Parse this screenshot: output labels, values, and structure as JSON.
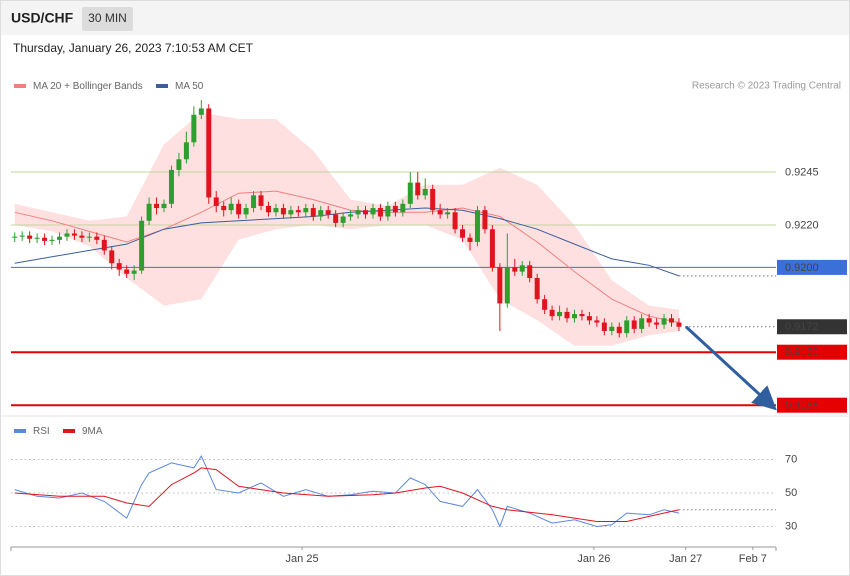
{
  "header": {
    "symbol": "USD/CHF",
    "interval": "30 MIN",
    "timestamp": "Thursday, January 26, 2023 7:10:53 AM CET",
    "credit": "Research © 2023 Trading Central"
  },
  "chart_data": [
    {
      "type": "candlestick",
      "xlim": [
        -0.5,
        102
      ],
      "ylim": [
        0.913,
        0.928
      ],
      "up_color": "#2e9e2e",
      "down_color": "#e0141e",
      "candles": {
        "x": [
          0,
          1,
          2,
          3,
          4,
          5,
          6,
          7,
          8,
          9,
          10,
          11,
          12,
          13,
          14,
          15,
          16,
          17,
          18,
          19,
          20,
          21,
          22,
          23,
          24,
          25,
          26,
          27,
          28,
          29,
          30,
          31,
          32,
          33,
          34,
          35,
          36,
          37,
          38,
          39,
          40,
          41,
          42,
          43,
          44,
          45,
          46,
          47,
          48,
          49,
          50,
          51,
          52,
          53,
          54,
          55,
          56,
          57,
          58,
          59,
          60,
          61,
          62,
          63,
          64,
          65,
          66,
          67,
          68,
          69,
          70,
          71,
          72,
          73,
          74,
          75,
          76,
          77,
          78,
          79,
          80,
          81,
          82,
          83,
          84,
          85,
          86,
          87,
          88,
          89
        ],
        "open": [
          0.9214,
          0.92145,
          0.9215,
          0.92135,
          0.9214,
          0.92125,
          0.9213,
          0.92145,
          0.9216,
          0.9215,
          0.9214,
          0.92145,
          0.9213,
          0.9208,
          0.9202,
          0.9199,
          0.9197,
          0.91985,
          0.9222,
          0.923,
          0.9228,
          0.923,
          0.9246,
          0.9251,
          0.9259,
          0.9272,
          0.9275,
          0.9233,
          0.9229,
          0.9227,
          0.923,
          0.9225,
          0.9228,
          0.9234,
          0.9229,
          0.9226,
          0.9228,
          0.9225,
          0.9227,
          0.9226,
          0.9228,
          0.9224,
          0.9227,
          0.9225,
          0.9221,
          0.9224,
          0.9225,
          0.9227,
          0.9225,
          0.9228,
          0.9224,
          0.9229,
          0.9226,
          0.923,
          0.924,
          0.9234,
          0.9237,
          0.9227,
          0.9225,
          0.9226,
          0.9218,
          0.9214,
          0.9212,
          0.9227,
          0.9218,
          0.92,
          0.9183,
          0.92,
          0.9198,
          0.9201,
          0.9195,
          0.9185,
          0.918,
          0.9177,
          0.9179,
          0.9176,
          0.9178,
          0.9177,
          0.9175,
          0.9174,
          0.917,
          0.9172,
          0.9169,
          0.9175,
          0.9171,
          0.9176,
          0.9174,
          0.9173,
          0.9176,
          0.9174
        ],
        "high": [
          0.92165,
          0.9217,
          0.9217,
          0.9216,
          0.9216,
          0.9215,
          0.92165,
          0.9218,
          0.9218,
          0.9217,
          0.92165,
          0.92165,
          0.9215,
          0.921,
          0.9204,
          0.9201,
          0.9201,
          0.9224,
          0.9233,
          0.9233,
          0.9232,
          0.9248,
          0.9254,
          0.9264,
          0.9276,
          0.9279,
          0.9277,
          0.9236,
          0.9231,
          0.9233,
          0.9232,
          0.923,
          0.9236,
          0.9236,
          0.9231,
          0.923,
          0.923,
          0.9229,
          0.9229,
          0.923,
          0.923,
          0.9229,
          0.9229,
          0.9227,
          0.9226,
          0.9227,
          0.9229,
          0.9229,
          0.923,
          0.923,
          0.9231,
          0.9231,
          0.9232,
          0.9245,
          0.9245,
          0.9242,
          0.9239,
          0.923,
          0.9228,
          0.9228,
          0.922,
          0.9216,
          0.9229,
          0.9229,
          0.922,
          0.9202,
          0.9216,
          0.9204,
          0.9203,
          0.9203,
          0.9197,
          0.9187,
          0.9182,
          0.9182,
          0.9181,
          0.918,
          0.918,
          0.9179,
          0.9177,
          0.9176,
          0.9174,
          0.9174,
          0.9177,
          0.9177,
          0.9178,
          0.9178,
          0.9176,
          0.9178,
          0.9178,
          0.9176
        ],
        "low": [
          0.9212,
          0.92125,
          0.92115,
          0.92115,
          0.92105,
          0.92105,
          0.9211,
          0.92125,
          0.9213,
          0.9212,
          0.9212,
          0.9211,
          0.9206,
          0.9199,
          0.9196,
          0.9195,
          0.9194,
          0.9197,
          0.922,
          0.9225,
          0.9226,
          0.9228,
          0.9243,
          0.9249,
          0.9257,
          0.927,
          0.923,
          0.9226,
          0.9224,
          0.9225,
          0.9223,
          0.9223,
          0.9226,
          0.9227,
          0.9224,
          0.9224,
          0.9223,
          0.9223,
          0.9224,
          0.9224,
          0.9222,
          0.9222,
          0.9223,
          0.9219,
          0.9219,
          0.9222,
          0.9223,
          0.9223,
          0.9223,
          0.9222,
          0.9222,
          0.9224,
          0.9224,
          0.9228,
          0.9232,
          0.9232,
          0.9225,
          0.9223,
          0.9223,
          0.9216,
          0.9212,
          0.9208,
          0.921,
          0.9216,
          0.9198,
          0.917,
          0.9181,
          0.9196,
          0.9196,
          0.9193,
          0.9183,
          0.9178,
          0.9175,
          0.9175,
          0.9174,
          0.9174,
          0.9175,
          0.9173,
          0.9172,
          0.9168,
          0.9168,
          0.9167,
          0.9167,
          0.9169,
          0.9169,
          0.9172,
          0.9171,
          0.9171,
          0.9172,
          0.917
        ],
        "close": [
          0.92145,
          0.9215,
          0.92135,
          0.9214,
          0.92125,
          0.9213,
          0.92145,
          0.9216,
          0.9215,
          0.9214,
          0.92145,
          0.9213,
          0.9208,
          0.9202,
          0.9199,
          0.9197,
          0.91985,
          0.9222,
          0.923,
          0.9228,
          0.923,
          0.9246,
          0.9251,
          0.9259,
          0.9272,
          0.9275,
          0.9233,
          0.9229,
          0.9227,
          0.923,
          0.9225,
          0.9228,
          0.9234,
          0.9229,
          0.9226,
          0.9228,
          0.9225,
          0.9227,
          0.9226,
          0.9228,
          0.9224,
          0.9227,
          0.9225,
          0.9221,
          0.9224,
          0.9225,
          0.9227,
          0.9225,
          0.9228,
          0.9224,
          0.9229,
          0.9226,
          0.923,
          0.924,
          0.9234,
          0.9237,
          0.9227,
          0.9225,
          0.9226,
          0.9218,
          0.9214,
          0.9212,
          0.9227,
          0.9218,
          0.92,
          0.9183,
          0.92,
          0.9198,
          0.9201,
          0.9195,
          0.9185,
          0.918,
          0.9177,
          0.9179,
          0.9176,
          0.9178,
          0.9177,
          0.9175,
          0.9174,
          0.917,
          0.9172,
          0.9169,
          0.9175,
          0.9171,
          0.9176,
          0.9174,
          0.9173,
          0.9176,
          0.9174,
          0.9172
        ]
      },
      "series": [
        {
          "name": "MA 20 + Bollinger Bands",
          "color": "#f08080",
          "band_color": "#fdd5d5",
          "x": [
            0,
            5,
            10,
            15,
            20,
            25,
            30,
            35,
            40,
            45,
            50,
            55,
            60,
            65,
            70,
            75,
            80,
            85,
            89
          ],
          "values": [
            0.9226,
            0.9222,
            0.9217,
            0.9212,
            0.9218,
            0.9226,
            0.9235,
            0.9236,
            0.9232,
            0.9227,
            0.9226,
            0.9226,
            0.9228,
            0.9224,
            0.9212,
            0.9198,
            0.9185,
            0.9177,
            0.9174
          ],
          "upper": [
            0.923,
            0.9226,
            0.9222,
            0.9224,
            0.9258,
            0.9273,
            0.927,
            0.927,
            0.9255,
            0.9232,
            0.9229,
            0.9239,
            0.9239,
            0.9247,
            0.9239,
            0.922,
            0.9194,
            0.9182,
            0.918
          ],
          "lower": [
            0.922,
            0.9217,
            0.921,
            0.9195,
            0.9182,
            0.9185,
            0.9213,
            0.9218,
            0.922,
            0.9218,
            0.922,
            0.922,
            0.9213,
            0.9185,
            0.9175,
            0.9163,
            0.9163,
            0.9168,
            0.917
          ]
        },
        {
          "name": "MA 50",
          "color": "#3a5f9a",
          "x": [
            0,
            5,
            10,
            15,
            20,
            25,
            30,
            35,
            40,
            45,
            50,
            55,
            60,
            65,
            70,
            75,
            80,
            85,
            89
          ],
          "values": [
            0.9202,
            0.9205,
            0.9208,
            0.9211,
            0.9218,
            0.9221,
            0.9222,
            0.9223,
            0.9224,
            0.9226,
            0.9227,
            0.9228,
            0.9227,
            0.9223,
            0.9218,
            0.9211,
            0.9204,
            0.9201,
            0.9196
          ]
        }
      ],
      "levels": [
        {
          "value": 0.9245,
          "label": "0.9245",
          "color": "#c2d69b",
          "text_color": "#5a9a12",
          "style": "solid",
          "box": false
        },
        {
          "value": 0.922,
          "label": "0.9220",
          "color": "#c2d69b",
          "text_color": "#5a9a12",
          "style": "solid",
          "box": false
        },
        {
          "value": 0.92,
          "label": "0.9200",
          "color": "#3a70d8",
          "text_color": "#ffffff",
          "style": "solid",
          "box": true
        },
        {
          "value": 0.9172,
          "label": "0.9172",
          "color": "#333333",
          "text_color": "#ffffff",
          "style": "dotted",
          "box": true
        },
        {
          "value": 0.916,
          "label": "0.9160",
          "color": "#e40000",
          "text_color": "#ffffff",
          "style": "thick",
          "box": true
        },
        {
          "value": 0.9135,
          "label": "0.9135",
          "color": "#e40000",
          "text_color": "#ffffff",
          "style": "thick",
          "box": true
        }
      ]
    },
    {
      "type": "line",
      "xlim": [
        -0.5,
        102
      ],
      "ylim": [
        22,
        94
      ],
      "yticks": [
        70,
        50,
        30
      ],
      "grid": true,
      "xticks": [
        {
          "value": 38.5,
          "label": "Jan 25"
        },
        {
          "value": 77.6,
          "label": "Jan 26"
        },
        {
          "value": 89.9,
          "label": "Jan 27"
        },
        {
          "value": 98.9,
          "label": "Feb 7"
        }
      ],
      "series": [
        {
          "name": "RSI",
          "color": "#5b87e0",
          "x": [
            0,
            3,
            6,
            9,
            12,
            15,
            17,
            18,
            21,
            24,
            25,
            27,
            30,
            33,
            36,
            39,
            42,
            45,
            48,
            51,
            53,
            55,
            57,
            60,
            62,
            64,
            65,
            66,
            69,
            72,
            75,
            78,
            80,
            82,
            85,
            87,
            89
          ],
          "values": [
            52,
            48,
            47,
            50,
            45,
            35,
            55,
            62,
            68,
            65,
            72,
            52,
            50,
            56,
            48,
            52,
            48,
            49,
            51,
            50,
            59,
            55,
            45,
            42,
            52,
            40,
            30,
            42,
            38,
            32,
            34,
            30,
            31,
            38,
            37,
            40,
            38
          ]
        },
        {
          "name": "9MA",
          "color": "#e0141e",
          "x": [
            0,
            6,
            12,
            15,
            18,
            21,
            24,
            25,
            27,
            30,
            36,
            42,
            48,
            51,
            55,
            57,
            60,
            64,
            66,
            72,
            78,
            82,
            85,
            89
          ],
          "values": [
            50,
            48,
            48,
            44,
            42,
            55,
            62,
            65,
            64,
            54,
            50,
            48,
            49,
            50,
            53,
            54,
            50,
            42,
            40,
            37,
            33,
            33,
            36,
            40
          ]
        }
      ]
    }
  ]
}
